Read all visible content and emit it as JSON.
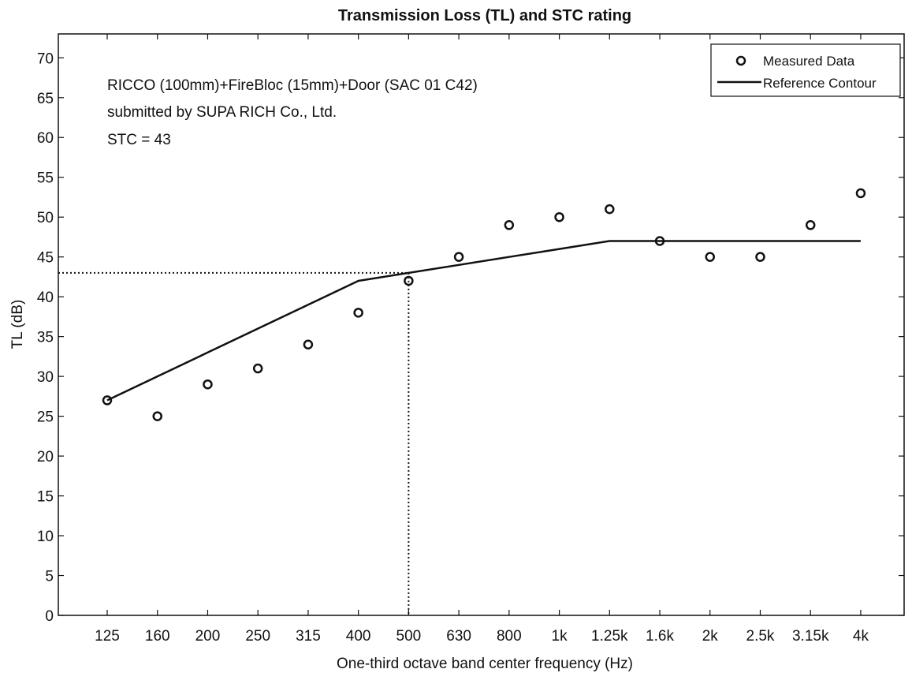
{
  "chart_data": {
    "type": "scatter",
    "title": "Transmission Loss (TL) and STC rating",
    "xlabel": "One-third octave band center frequency (Hz)",
    "ylabel": "TL (dB)",
    "ylim": [
      0,
      73
    ],
    "yticks": [
      0,
      5,
      10,
      15,
      20,
      25,
      30,
      35,
      40,
      45,
      50,
      55,
      60,
      65,
      70
    ],
    "categories": [
      "125",
      "160",
      "200",
      "250",
      "315",
      "400",
      "500",
      "630",
      "800",
      "1k",
      "1.25k",
      "1.6k",
      "2k",
      "2.5k",
      "3.15k",
      "4k"
    ],
    "series": [
      {
        "name": "Measured Data",
        "marker": "circle",
        "values": [
          27,
          25,
          29,
          31,
          34,
          38,
          42,
          45,
          49,
          50,
          51,
          47,
          45,
          45,
          49,
          53
        ]
      },
      {
        "name": "Reference Contour",
        "line": "solid",
        "values": [
          27,
          30,
          33,
          36,
          39,
          42,
          43,
          44,
          45,
          46,
          47,
          47,
          47,
          47,
          47,
          47
        ]
      }
    ],
    "stc_guide": {
      "category": "500",
      "value": 43
    },
    "annotations": [
      "RICCO (100mm)+FireBloc (15mm)+Door (SAC 01 C42)",
      "submitted by SUPA RICH Co., Ltd.",
      "STC = 43"
    ],
    "legend_position": "top-right",
    "grid": false,
    "colors": {
      "axes": "#111111",
      "markers": "#111111",
      "line": "#111111",
      "background": "#ffffff"
    }
  }
}
